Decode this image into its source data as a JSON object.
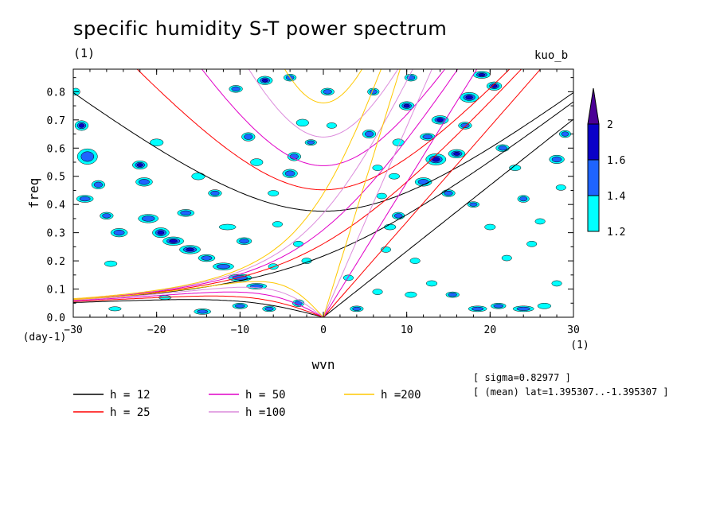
{
  "header": {
    "title": "specific humidity S-T power spectrum",
    "subtitle": "(1)",
    "run_name": "kuo_b"
  },
  "info": {
    "sigma": "[ sigma=0.82977 ]",
    "lat": "[ (mean) lat=1.395307..-1.395307 ]"
  },
  "chart_data": {
    "type": "contour",
    "title": "specific humidity S-T power spectrum",
    "xlabel": "wvn",
    "xunit": "(1)",
    "ylabel": "freq",
    "yunit": "(day-1)",
    "xlim": [
      -30,
      30
    ],
    "ylim": [
      0,
      0.88
    ],
    "xticks": [
      -30,
      -20,
      -10,
      0,
      10,
      20,
      30
    ],
    "xtick_labels": [
      "-30",
      "-20",
      "-10",
      "0",
      "10",
      "20",
      "30"
    ],
    "yticks": [
      0.0,
      0.1,
      0.2,
      0.3,
      0.4,
      0.5,
      0.6,
      0.7,
      0.8
    ],
    "ytick_labels": [
      "0.0",
      "0.1",
      "0.2",
      "0.3",
      "0.4",
      "0.5",
      "0.6",
      "0.7",
      "0.8"
    ],
    "colorbar": {
      "levels": [
        "1.2",
        "1.4",
        "1.6",
        "2"
      ],
      "colors": [
        "#00ffff",
        "#1e64ff",
        "#0a00c8",
        "#4b0096"
      ]
    },
    "dispersion_curves": [
      {
        "label": "h = 12",
        "h": 12,
        "color": "#000000"
      },
      {
        "label": "h = 25",
        "h": 25,
        "color": "#ff0000"
      },
      {
        "label": "h = 50",
        "h": 50,
        "color": "#e100c8"
      },
      {
        "label": "h =100",
        "h": 100,
        "color": "#dc8cdc"
      },
      {
        "label": "h =200",
        "h": 200,
        "color": "#ffc800"
      }
    ],
    "blobs": [
      [
        -29.7,
        0.8,
        1.0,
        0.025,
        1
      ],
      [
        -29.0,
        0.68,
        1.6,
        0.035,
        3
      ],
      [
        -28.3,
        0.57,
        2.4,
        0.055,
        2
      ],
      [
        -28.6,
        0.42,
        2.0,
        0.025,
        2
      ],
      [
        -27.0,
        0.47,
        1.6,
        0.03,
        2
      ],
      [
        -26.0,
        0.36,
        1.6,
        0.025,
        2
      ],
      [
        -25.5,
        0.19,
        1.5,
        0.02,
        1
      ],
      [
        -24.5,
        0.3,
        2.0,
        0.03,
        2
      ],
      [
        -22.0,
        0.54,
        1.8,
        0.03,
        3
      ],
      [
        -21.5,
        0.48,
        2.0,
        0.03,
        2
      ],
      [
        -21.0,
        0.35,
        2.4,
        0.03,
        2
      ],
      [
        -19.5,
        0.3,
        2.0,
        0.035,
        3
      ],
      [
        -18.0,
        0.27,
        2.5,
        0.03,
        3
      ],
      [
        -16.0,
        0.24,
        2.5,
        0.03,
        3
      ],
      [
        -14.0,
        0.21,
        2.0,
        0.025,
        2
      ],
      [
        -16.5,
        0.37,
        2.0,
        0.025,
        2
      ],
      [
        -20.0,
        0.62,
        1.6,
        0.025,
        1
      ],
      [
        -15.0,
        0.5,
        1.6,
        0.025,
        1
      ],
      [
        -12.0,
        0.18,
        2.5,
        0.025,
        2
      ],
      [
        -10.0,
        0.14,
        2.8,
        0.025,
        2
      ],
      [
        -8.0,
        0.11,
        2.4,
        0.02,
        2
      ],
      [
        -13.0,
        0.44,
        1.6,
        0.025,
        2
      ],
      [
        -11.5,
        0.32,
        2.0,
        0.02,
        1
      ],
      [
        -9.5,
        0.27,
        1.8,
        0.025,
        2
      ],
      [
        -7.0,
        0.84,
        1.8,
        0.03,
        3
      ],
      [
        -10.5,
        0.81,
        1.6,
        0.025,
        2
      ],
      [
        -9.0,
        0.64,
        1.6,
        0.03,
        2
      ],
      [
        -8.0,
        0.55,
        1.5,
        0.025,
        1
      ],
      [
        -6.0,
        0.44,
        1.3,
        0.02,
        1
      ],
      [
        -4.0,
        0.51,
        1.8,
        0.03,
        2
      ],
      [
        -3.5,
        0.57,
        1.6,
        0.03,
        2
      ],
      [
        -2.5,
        0.69,
        1.5,
        0.025,
        1
      ],
      [
        -1.5,
        0.62,
        1.4,
        0.02,
        2
      ],
      [
        0.5,
        0.8,
        1.6,
        0.025,
        2
      ],
      [
        1.0,
        0.68,
        1.2,
        0.02,
        1
      ],
      [
        -4.0,
        0.85,
        1.5,
        0.025,
        2
      ],
      [
        -5.5,
        0.33,
        1.2,
        0.02,
        1
      ],
      [
        -3.0,
        0.26,
        1.2,
        0.02,
        1
      ],
      [
        -2.0,
        0.2,
        1.2,
        0.02,
        1
      ],
      [
        -6.0,
        0.18,
        1.2,
        0.02,
        1
      ],
      [
        -14.5,
        0.02,
        2.0,
        0.02,
        2
      ],
      [
        -10.0,
        0.04,
        1.8,
        0.02,
        2
      ],
      [
        -6.5,
        0.03,
        1.6,
        0.02,
        2
      ],
      [
        -3.0,
        0.05,
        1.4,
        0.025,
        2
      ],
      [
        -25.0,
        0.03,
        1.5,
        0.015,
        1
      ],
      [
        -19.0,
        0.07,
        1.5,
        0.015,
        1
      ],
      [
        5.5,
        0.65,
        1.6,
        0.03,
        2
      ],
      [
        6.0,
        0.8,
        1.4,
        0.025,
        2
      ],
      [
        6.5,
        0.53,
        1.2,
        0.02,
        1
      ],
      [
        7.0,
        0.43,
        1.2,
        0.02,
        1
      ],
      [
        8.0,
        0.32,
        1.4,
        0.02,
        1
      ],
      [
        7.5,
        0.24,
        1.2,
        0.02,
        1
      ],
      [
        9.0,
        0.36,
        1.5,
        0.025,
        2
      ],
      [
        8.5,
        0.5,
        1.3,
        0.02,
        1
      ],
      [
        9.0,
        0.62,
        1.4,
        0.025,
        1
      ],
      [
        10.0,
        0.75,
        1.8,
        0.03,
        3
      ],
      [
        10.5,
        0.85,
        1.5,
        0.025,
        2
      ],
      [
        12.0,
        0.48,
        2.0,
        0.03,
        2
      ],
      [
        12.5,
        0.64,
        1.8,
        0.025,
        2
      ],
      [
        13.5,
        0.56,
        2.4,
        0.04,
        3
      ],
      [
        14.0,
        0.7,
        2.0,
        0.03,
        3
      ],
      [
        16.0,
        0.58,
        2.0,
        0.03,
        3
      ],
      [
        15.0,
        0.44,
        1.6,
        0.025,
        2
      ],
      [
        17.0,
        0.68,
        1.6,
        0.025,
        2
      ],
      [
        17.5,
        0.78,
        2.2,
        0.035,
        3
      ],
      [
        19.0,
        0.86,
        2.0,
        0.025,
        3
      ],
      [
        20.5,
        0.82,
        1.8,
        0.03,
        3
      ],
      [
        21.5,
        0.6,
        1.6,
        0.025,
        2
      ],
      [
        23.0,
        0.53,
        1.4,
        0.02,
        1
      ],
      [
        24.0,
        0.42,
        1.4,
        0.025,
        2
      ],
      [
        25.0,
        0.26,
        1.2,
        0.02,
        1
      ],
      [
        26.0,
        0.34,
        1.2,
        0.02,
        1
      ],
      [
        28.0,
        0.56,
        1.8,
        0.03,
        2
      ],
      [
        29.0,
        0.65,
        1.4,
        0.025,
        2
      ],
      [
        28.5,
        0.46,
        1.2,
        0.02,
        1
      ],
      [
        22.0,
        0.21,
        1.2,
        0.02,
        1
      ],
      [
        20.0,
        0.32,
        1.3,
        0.02,
        1
      ],
      [
        18.0,
        0.4,
        1.4,
        0.02,
        2
      ],
      [
        11.0,
        0.2,
        1.2,
        0.02,
        1
      ],
      [
        13.0,
        0.12,
        1.3,
        0.02,
        1
      ],
      [
        15.5,
        0.08,
        1.6,
        0.02,
        2
      ],
      [
        18.5,
        0.03,
        2.2,
        0.02,
        2
      ],
      [
        21.0,
        0.04,
        1.8,
        0.02,
        2
      ],
      [
        24.0,
        0.03,
        2.5,
        0.02,
        2
      ],
      [
        26.5,
        0.04,
        1.6,
        0.02,
        1
      ],
      [
        10.5,
        0.08,
        1.4,
        0.02,
        1
      ],
      [
        4.0,
        0.03,
        1.6,
        0.02,
        2
      ],
      [
        6.5,
        0.09,
        1.2,
        0.02,
        1
      ],
      [
        28.0,
        0.12,
        1.2,
        0.02,
        1
      ],
      [
        3.0,
        0.14,
        1.2,
        0.02,
        1
      ]
    ]
  }
}
